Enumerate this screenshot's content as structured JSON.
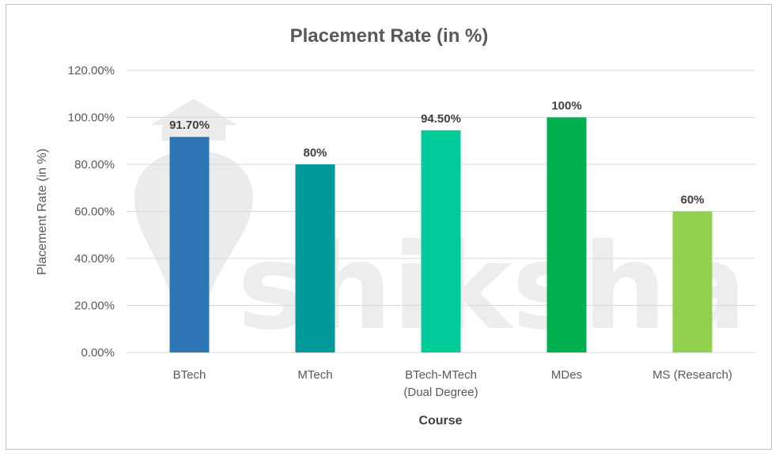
{
  "chart_data": {
    "type": "bar",
    "title": "Placement Rate (in %)",
    "xlabel": "Course",
    "ylabel": "Placement Rate (in %)",
    "categories": [
      [
        "BTech"
      ],
      [
        "MTech"
      ],
      [
        "BTech-MTech",
        "(Dual Degree)"
      ],
      [
        "MDes"
      ],
      [
        "MS (Research)"
      ]
    ],
    "values": [
      91.7,
      80,
      94.5,
      100,
      60
    ],
    "data_labels": [
      "91.70%",
      "80%",
      "94.50%",
      "100%",
      "60%"
    ],
    "colors": [
      "#2e75b6",
      "#009999",
      "#00cc99",
      "#00b050",
      "#92d050"
    ],
    "ylim": [
      0,
      120
    ],
    "yticks": [
      "0.00%",
      "20.00%",
      "40.00%",
      "60.00%",
      "80.00%",
      "100.00%",
      "120.00%"
    ],
    "grid": true,
    "legend": "none"
  },
  "watermark": {
    "text": "shiksha",
    "icon": "shiksha-logo-icon"
  }
}
